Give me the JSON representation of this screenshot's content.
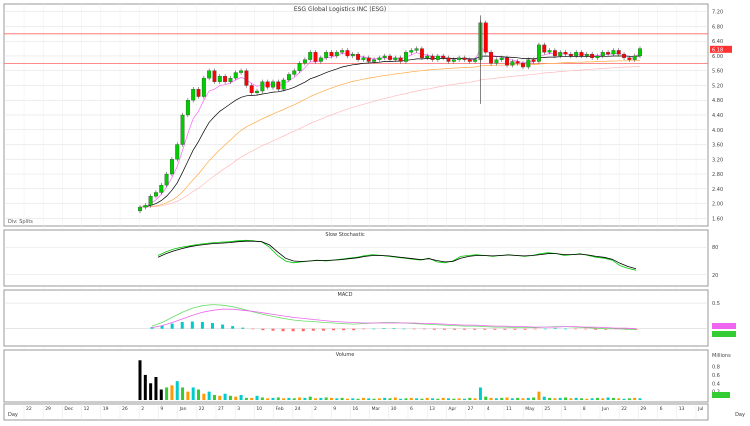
{
  "chart_data": [
    {
      "panel": "price",
      "type": "candlestick",
      "title": "ESG Global Logistics INC  (ESG)",
      "ylim": [
        1.5,
        7.3
      ],
      "y_ticks": [
        "7.20",
        "6.80",
        "6.40",
        "6.00",
        "5.60",
        "5.20",
        "4.80",
        "4.40",
        "4.00",
        "3.60",
        "3.20",
        "2.80",
        "2.40",
        "2.00",
        "1.60"
      ],
      "horizontal_lines": [
        6.6,
        5.8
      ],
      "last_price": "6.18",
      "note": "Div: Splits",
      "closes": [
        1.9,
        1.95,
        2.2,
        2.3,
        2.5,
        2.8,
        3.2,
        3.6,
        4.4,
        4.8,
        5.1,
        4.9,
        5.4,
        5.6,
        5.3,
        5.45,
        5.3,
        5.4,
        5.55,
        5.6,
        5.2,
        5.0,
        5.05,
        5.3,
        5.15,
        5.3,
        5.1,
        5.35,
        5.5,
        5.6,
        5.8,
        5.9,
        6.1,
        5.85,
        5.95,
        6.1,
        6.0,
        6.1,
        6.15,
        6.0,
        6.05,
        5.9,
        5.95,
        5.85,
        5.9,
        5.95,
        6.0,
        5.9,
        5.95,
        5.85,
        6.1,
        6.15,
        6.2,
        5.95,
        6.0,
        5.9,
        6.0,
        5.95,
        5.85,
        5.9,
        5.95,
        5.9,
        5.85,
        5.9,
        6.9,
        6.1,
        5.8,
        5.9,
        5.95,
        5.75,
        5.85,
        5.8,
        5.7,
        5.9,
        5.85,
        6.3,
        6.1,
        6.15,
        6.0,
        6.1,
        6.05,
        6.0,
        6.1,
        6.0,
        6.05,
        5.95,
        6.0,
        6.1,
        6.05,
        6.15,
        6.05,
        5.95,
        5.9,
        6.0,
        6.2
      ],
      "series": [
        {
          "color": "#ff66ff",
          "values": [
            1.9,
            1.92,
            2.0,
            2.1,
            2.25,
            2.45,
            2.7,
            3.0,
            3.45,
            3.9,
            4.3,
            4.5,
            4.8,
            5.05,
            5.1,
            5.2,
            5.22,
            5.27,
            5.35,
            5.42,
            5.36,
            5.25,
            5.18,
            5.22,
            5.2,
            5.24,
            5.19,
            5.24,
            5.33,
            5.42,
            5.55,
            5.68,
            5.84,
            5.84,
            5.88,
            5.95,
            5.97,
            6.02,
            6.07,
            6.05,
            6.05,
            6.0,
            5.98,
            5.93,
            5.92,
            5.93,
            5.95,
            5.93,
            5.94,
            5.91,
            5.97,
            6.03,
            6.09,
            6.04,
            6.03,
            5.98,
            5.99,
            5.97,
            5.93,
            5.92,
            5.93,
            5.92,
            5.9,
            5.9,
            6.2,
            6.17,
            6.04,
            5.99,
            5.98,
            5.91,
            5.89,
            5.86,
            5.81,
            5.84,
            5.84,
            5.99,
            6.03,
            6.07,
            6.05,
            6.06,
            6.06,
            6.04,
            6.06,
            6.04,
            6.04,
            6.01,
            6.01,
            6.04,
            6.04,
            6.07,
            6.07,
            6.03,
            5.99,
            5.99,
            6.06
          ]
        },
        {
          "color": "#000000",
          "values": [
            1.9,
            1.91,
            1.95,
            2.0,
            2.08,
            2.2,
            2.36,
            2.56,
            2.85,
            3.15,
            3.45,
            3.68,
            3.95,
            4.2,
            4.36,
            4.5,
            4.6,
            4.7,
            4.8,
            4.88,
            4.92,
            4.93,
            4.94,
            4.97,
            4.99,
            5.02,
            5.03,
            5.06,
            5.1,
            5.15,
            5.22,
            5.29,
            5.38,
            5.43,
            5.49,
            5.55,
            5.6,
            5.65,
            5.7,
            5.73,
            5.76,
            5.78,
            5.8,
            5.81,
            5.82,
            5.83,
            5.85,
            5.85,
            5.86,
            5.86,
            5.88,
            5.9,
            5.92,
            5.92,
            5.93,
            5.93,
            5.93,
            5.93,
            5.93,
            5.93,
            5.93,
            5.93,
            5.92,
            5.92,
            5.99,
            6.0,
            5.99,
            5.98,
            5.98,
            5.97,
            5.96,
            5.95,
            5.93,
            5.93,
            5.92,
            5.95,
            5.96,
            5.97,
            5.97,
            5.98,
            5.98,
            5.98,
            5.98,
            5.98,
            5.98,
            5.98,
            5.98,
            5.99,
            5.99,
            6.0,
            6.0,
            6.0,
            5.99,
            5.99,
            6.0
          ]
        },
        {
          "color": "#ffaa44",
          "values": [
            1.9,
            1.9,
            1.92,
            1.94,
            1.97,
            2.02,
            2.09,
            2.18,
            2.32,
            2.48,
            2.65,
            2.8,
            2.98,
            3.16,
            3.31,
            3.46,
            3.59,
            3.72,
            3.86,
            3.98,
            4.08,
            4.15,
            4.22,
            4.3,
            4.36,
            4.43,
            4.49,
            4.55,
            4.62,
            4.68,
            4.75,
            4.82,
            4.9,
            4.96,
            5.02,
            5.08,
            5.13,
            5.18,
            5.23,
            5.27,
            5.31,
            5.34,
            5.37,
            5.4,
            5.42,
            5.45,
            5.47,
            5.49,
            5.51,
            5.53,
            5.55,
            5.57,
            5.59,
            5.6,
            5.62,
            5.63,
            5.64,
            5.65,
            5.66,
            5.67,
            5.68,
            5.69,
            5.69,
            5.7,
            5.73,
            5.74,
            5.74,
            5.75,
            5.75,
            5.75,
            5.76,
            5.76,
            5.76,
            5.76,
            5.77,
            5.78,
            5.79,
            5.8,
            5.8,
            5.81,
            5.82,
            5.82,
            5.83,
            5.83,
            5.84,
            5.84,
            5.85,
            5.85,
            5.86,
            5.86,
            5.87,
            5.87,
            5.87,
            5.87,
            5.88
          ]
        },
        {
          "color": "#ffbbbb",
          "values": [
            1.9,
            1.9,
            1.91,
            1.92,
            1.94,
            1.97,
            2.01,
            2.06,
            2.14,
            2.23,
            2.33,
            2.42,
            2.53,
            2.65,
            2.75,
            2.86,
            2.96,
            3.05,
            3.16,
            3.26,
            3.34,
            3.42,
            3.49,
            3.57,
            3.63,
            3.7,
            3.76,
            3.83,
            3.9,
            3.96,
            4.03,
            4.1,
            4.17,
            4.23,
            4.29,
            4.35,
            4.4,
            4.46,
            4.51,
            4.56,
            4.61,
            4.65,
            4.69,
            4.73,
            4.77,
            4.81,
            4.85,
            4.88,
            4.92,
            4.95,
            4.98,
            5.02,
            5.05,
            5.08,
            5.1,
            5.13,
            5.16,
            5.18,
            5.21,
            5.23,
            5.25,
            5.27,
            5.29,
            5.31,
            5.35,
            5.37,
            5.38,
            5.4,
            5.42,
            5.43,
            5.45,
            5.46,
            5.47,
            5.49,
            5.5,
            5.52,
            5.54,
            5.55,
            5.56,
            5.58,
            5.59,
            5.6,
            5.61,
            5.62,
            5.63,
            5.64,
            5.65,
            5.66,
            5.67,
            5.68,
            5.69,
            5.7,
            5.7,
            5.71,
            5.72
          ]
        }
      ]
    },
    {
      "panel": "stochastic",
      "type": "line",
      "title": "Slow Stochastic",
      "ylim": [
        0,
        100
      ],
      "y_ticks": [
        "80",
        "20"
      ],
      "series": [
        {
          "color": "#00cc00",
          "values": [
            62,
            70,
            76,
            80,
            83,
            86,
            88,
            90,
            91,
            92,
            94,
            95,
            94,
            92,
            80,
            62,
            50,
            46,
            48,
            50,
            52,
            50,
            52,
            54,
            56,
            58,
            62,
            64,
            62,
            60,
            58,
            56,
            54,
            52,
            56,
            48,
            46,
            50,
            60,
            62,
            64,
            62,
            60,
            62,
            64,
            62,
            60,
            62,
            66,
            68,
            66,
            62,
            64,
            66,
            62,
            58,
            56,
            52,
            40,
            34,
            30
          ]
        },
        {
          "color": "#000000",
          "values": [
            58,
            66,
            72,
            77,
            81,
            84,
            86,
            88,
            89,
            90,
            92,
            93,
            93,
            92,
            85,
            70,
            56,
            50,
            49,
            50,
            51,
            51,
            52,
            53,
            55,
            57,
            60,
            62,
            62,
            61,
            59,
            57,
            55,
            53,
            55,
            51,
            48,
            49,
            56,
            60,
            62,
            62,
            61,
            62,
            63,
            62,
            61,
            62,
            64,
            66,
            66,
            64,
            64,
            65,
            63,
            60,
            58,
            54,
            45,
            38,
            33
          ]
        }
      ]
    },
    {
      "panel": "macd",
      "type": "line",
      "title": "MACD",
      "ylim": [
        -0.3,
        0.6
      ],
      "y_ticks": [
        "0.5"
      ],
      "series": [
        {
          "color": "#66dd66",
          "values": [
            0.05,
            0.12,
            0.22,
            0.32,
            0.4,
            0.45,
            0.47,
            0.46,
            0.43,
            0.38,
            0.33,
            0.28,
            0.24,
            0.2,
            0.17,
            0.15,
            0.14,
            0.12,
            0.11,
            0.1,
            0.09,
            0.1,
            0.11,
            0.12,
            0.12,
            0.11,
            0.1,
            0.09,
            0.08,
            0.07,
            0.06,
            0.05,
            0.05,
            0.04,
            0.03,
            0.03,
            0.02,
            0.02,
            0.02,
            0.03,
            0.04,
            0.04,
            0.03,
            0.02,
            0.01,
            0.0,
            0.0,
            -0.01,
            -0.02
          ]
        },
        {
          "color": "#ee66ee",
          "values": [
            0.02,
            0.06,
            0.12,
            0.19,
            0.26,
            0.32,
            0.36,
            0.38,
            0.38,
            0.36,
            0.34,
            0.31,
            0.28,
            0.25,
            0.22,
            0.2,
            0.18,
            0.16,
            0.14,
            0.13,
            0.12,
            0.11,
            0.11,
            0.11,
            0.11,
            0.11,
            0.11,
            0.1,
            0.1,
            0.09,
            0.08,
            0.07,
            0.07,
            0.06,
            0.05,
            0.05,
            0.04,
            0.04,
            0.03,
            0.03,
            0.03,
            0.04,
            0.04,
            0.03,
            0.03,
            0.02,
            0.01,
            0.01,
            0.0
          ]
        },
        {
          "color": "#00cccc",
          "kind": "histogram",
          "values": [
            0.03,
            0.06,
            0.1,
            0.13,
            0.14,
            0.13,
            0.11,
            0.08,
            0.05,
            0.02,
            -0.01,
            -0.03,
            -0.04,
            -0.05,
            -0.05,
            -0.05,
            -0.04,
            -0.04,
            -0.03,
            -0.03,
            -0.03,
            -0.01,
            0.0,
            0.01,
            0.01,
            0.0,
            -0.01,
            -0.01,
            -0.02,
            -0.02,
            -0.02,
            -0.02,
            -0.02,
            -0.02,
            -0.02,
            -0.02,
            -0.02,
            -0.02,
            -0.01,
            0.0,
            0.01,
            0.0,
            -0.01,
            -0.01,
            -0.02,
            -0.02,
            -0.01,
            -0.02,
            -0.02
          ]
        }
      ]
    },
    {
      "panel": "volume",
      "type": "bar",
      "title": "Volume",
      "ylim": [
        0,
        1.1
      ],
      "y_ticks": [
        "Millions",
        "0.8",
        "0.6",
        "0.4",
        "0.2"
      ],
      "values": [
        0.95,
        0.6,
        0.4,
        0.55,
        0.25,
        0.3,
        0.35,
        0.45,
        0.3,
        0.2,
        0.3,
        0.25,
        0.15,
        0.2,
        0.12,
        0.1,
        0.15,
        0.1,
        0.08,
        0.12,
        0.05,
        0.05,
        0.1,
        0.06,
        0.04,
        0.05,
        0.06,
        0.04,
        0.05,
        0.04,
        0.06,
        0.05,
        0.08,
        0.04,
        0.05,
        0.06,
        0.05,
        0.04,
        0.05,
        0.03,
        0.04,
        0.03,
        0.05,
        0.04,
        0.03,
        0.04,
        0.05,
        0.04,
        0.06,
        0.03,
        0.04,
        0.05,
        0.04,
        0.03,
        0.05,
        0.04,
        0.03,
        0.05,
        0.04,
        0.03,
        0.04,
        0.03,
        0.05,
        0.04,
        0.3,
        0.08,
        0.05,
        0.04,
        0.05,
        0.06,
        0.04,
        0.05,
        0.04,
        0.05,
        0.06,
        0.2,
        0.08,
        0.05,
        0.04,
        0.05,
        0.06,
        0.04,
        0.05,
        0.04,
        0.03,
        0.04,
        0.05,
        0.04,
        0.06,
        0.05,
        0.04,
        0.03,
        0.04,
        0.05,
        0.04
      ]
    }
  ],
  "x_axis": {
    "period_label": "Day",
    "ticks": [
      "22",
      "29",
      "Dec",
      "12",
      "19",
      "26",
      "2",
      "9",
      "Jan",
      "22",
      "27",
      "3",
      "10",
      "Feb",
      "24",
      "2",
      "9",
      "16",
      "Mar",
      "30",
      "6",
      "13",
      "Apr",
      "27",
      "4",
      "11",
      "May",
      "25",
      "1",
      "8",
      "Jun",
      "22",
      "29",
      "6",
      "13",
      "Jul"
    ],
    "right_label": "Day"
  },
  "colors": {
    "up": "#00cc00",
    "down": "#ff0000",
    "grid": "#dddddd",
    "panel_border": "#999999",
    "hline": "#ff6666",
    "last_price_tag": "#ff3333",
    "vol_black": "#000000",
    "vol_cyan": "#00cccc",
    "vol_orange": "#ff9900",
    "vol_green": "#33cc33"
  }
}
